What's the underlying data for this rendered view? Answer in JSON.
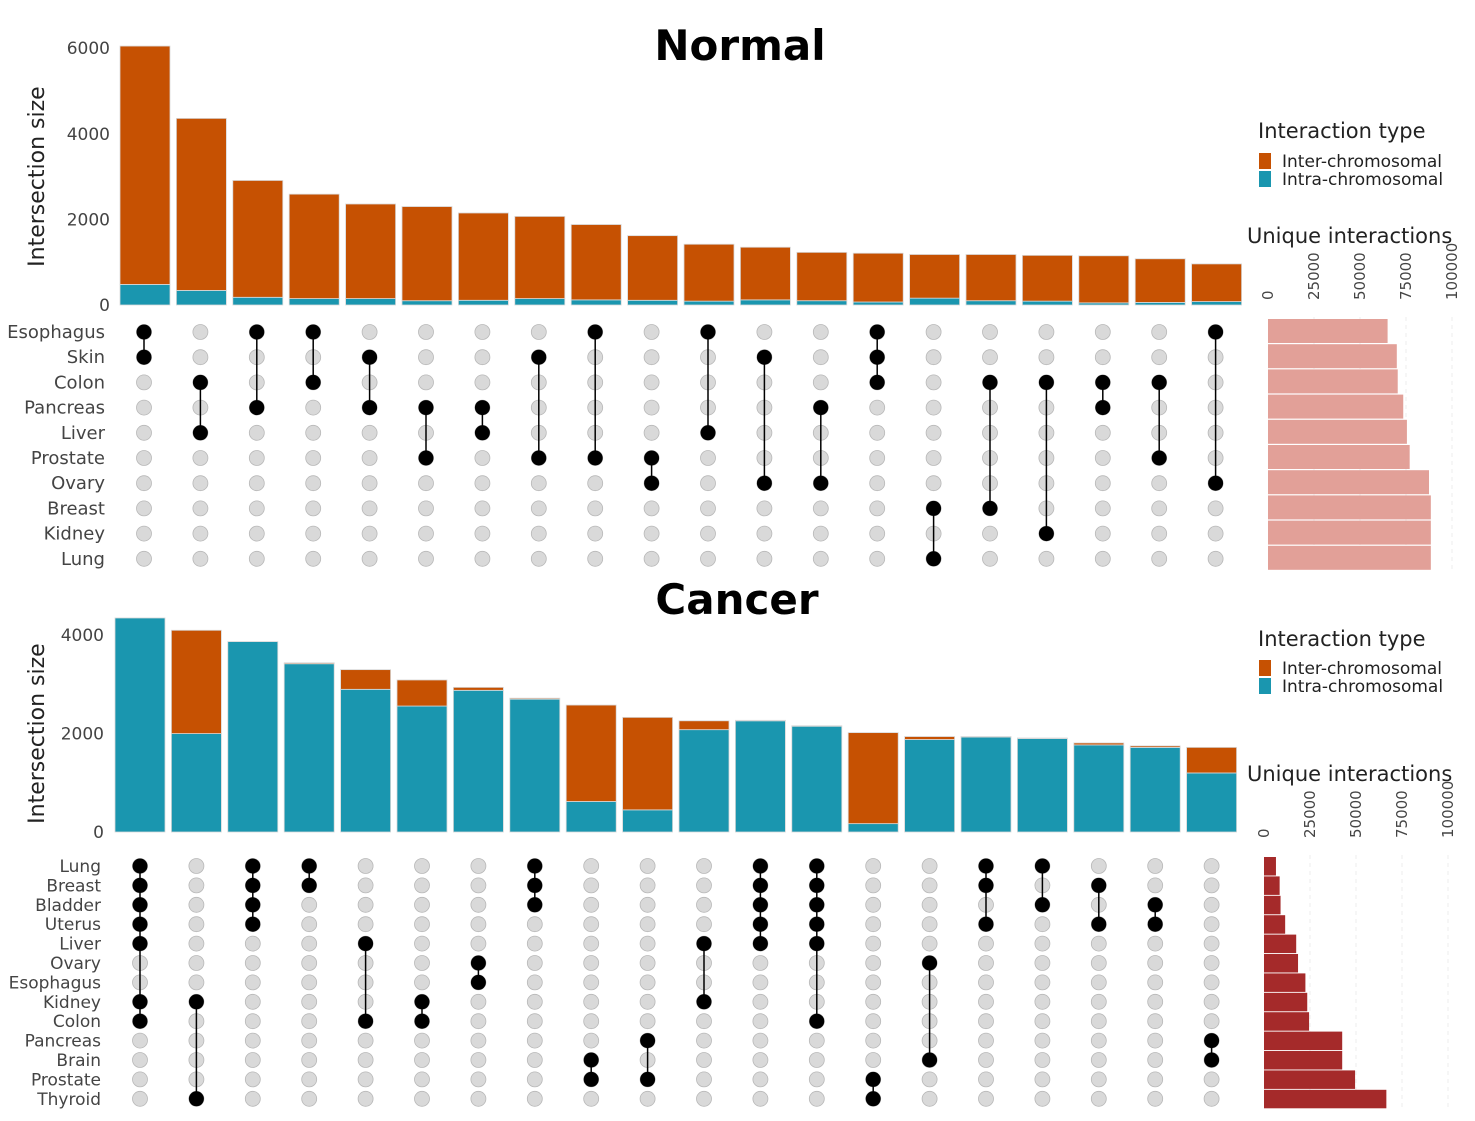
{
  "chart_data": [
    {
      "type": "bar",
      "title": "Normal",
      "ylabel": "Intersection size",
      "ylim": [
        0,
        6000
      ],
      "yticks": [
        0,
        2000,
        4000,
        6000
      ],
      "sets": [
        "Esophagus",
        "Skin",
        "Colon",
        "Pancreas",
        "Liver",
        "Prostate",
        "Ovary",
        "Breast",
        "Kidney",
        "Lung"
      ],
      "series": [
        {
          "name": "Inter-chromosomal",
          "color": "#C65102",
          "values": [
            5570,
            4020,
            2730,
            2440,
            2210,
            2200,
            2040,
            1920,
            1760,
            1510,
            1330,
            1230,
            1130,
            1140,
            1020,
            1080,
            1070,
            1100,
            1020,
            880
          ]
        },
        {
          "name": "Intra-chromosomal",
          "color": "#1A96AF",
          "values": [
            480,
            340,
            180,
            150,
            150,
            100,
            110,
            150,
            120,
            110,
            90,
            120,
            100,
            70,
            160,
            100,
            90,
            50,
            60,
            80
          ]
        }
      ],
      "intersections": [
        [
          "Esophagus",
          "Skin"
        ],
        [
          "Colon",
          "Liver"
        ],
        [
          "Esophagus",
          "Pancreas"
        ],
        [
          "Esophagus",
          "Colon"
        ],
        [
          "Skin",
          "Pancreas"
        ],
        [
          "Pancreas",
          "Prostate"
        ],
        [
          "Pancreas",
          "Liver"
        ],
        [
          "Skin",
          "Prostate"
        ],
        [
          "Esophagus",
          "Prostate"
        ],
        [
          "Prostate",
          "Ovary"
        ],
        [
          "Esophagus",
          "Liver"
        ],
        [
          "Skin",
          "Ovary"
        ],
        [
          "Pancreas",
          "Ovary"
        ],
        [
          "Esophagus",
          "Skin",
          "Colon"
        ],
        [
          "Breast",
          "Lung"
        ],
        [
          "Colon",
          "Breast"
        ],
        [
          "Colon",
          "Kidney"
        ],
        [
          "Colon",
          "Pancreas"
        ],
        [
          "Colon",
          "Prostate"
        ],
        [
          "Esophagus",
          "Ovary"
        ]
      ],
      "legend": {
        "title": "Interaction type",
        "position": "right",
        "items": [
          {
            "label": "Inter-chromosomal",
            "color": "#C65102"
          },
          {
            "label": "Intra-chromosomal",
            "color": "#1A96AF"
          }
        ]
      },
      "unique": {
        "title": "Unique interactions",
        "ticks": [
          "0",
          "25000",
          "50000",
          "75000",
          "100000"
        ],
        "xlim": [
          0,
          100000
        ],
        "color": "#E2A098",
        "values": [
          65000,
          70000,
          70500,
          73500,
          75500,
          77000,
          87500,
          88500,
          88500,
          88500
        ]
      }
    },
    {
      "type": "bar",
      "title": "Cancer",
      "ylabel": "Intersection size",
      "ylim": [
        0,
        4000
      ],
      "yticks": [
        0,
        2000,
        4000
      ],
      "sets": [
        "Lung",
        "Breast",
        "Bladder",
        "Uterus",
        "Liver",
        "Ovary",
        "Esophagus",
        "Kidney",
        "Colon",
        "Pancreas",
        "Brain",
        "Prostate",
        "Thyroid"
      ],
      "series": [
        {
          "name": "Inter-chromosomal",
          "color": "#C65102",
          "values": [
            0,
            2100,
            0,
            20,
            400,
            530,
            60,
            20,
            1960,
            1880,
            180,
            10,
            10,
            1850,
            60,
            10,
            10,
            40,
            30,
            520
          ]
        },
        {
          "name": "Intra-chromosomal",
          "color": "#1A96AF",
          "values": [
            4350,
            2000,
            3870,
            3420,
            2900,
            2560,
            2880,
            2700,
            620,
            450,
            2080,
            2260,
            2150,
            170,
            1880,
            1930,
            1900,
            1770,
            1720,
            1200
          ]
        }
      ],
      "intersections": [
        [
          "Lung",
          "Breast",
          "Bladder",
          "Uterus",
          "Liver",
          "Kidney",
          "Colon"
        ],
        [
          "Kidney",
          "Thyroid"
        ],
        [
          "Lung",
          "Breast",
          "Bladder",
          "Uterus"
        ],
        [
          "Lung",
          "Breast"
        ],
        [
          "Liver",
          "Colon"
        ],
        [
          "Kidney",
          "Colon"
        ],
        [
          "Ovary",
          "Esophagus"
        ],
        [
          "Lung",
          "Breast",
          "Bladder"
        ],
        [
          "Brain",
          "Prostate"
        ],
        [
          "Pancreas",
          "Prostate"
        ],
        [
          "Liver",
          "Kidney"
        ],
        [
          "Lung",
          "Breast",
          "Bladder",
          "Uterus",
          "Liver"
        ],
        [
          "Lung",
          "Breast",
          "Bladder",
          "Uterus",
          "Liver",
          "Colon"
        ],
        [
          "Prostate",
          "Thyroid"
        ],
        [
          "Ovary",
          "Brain"
        ],
        [
          "Lung",
          "Breast",
          "Uterus"
        ],
        [
          "Lung",
          "Bladder"
        ],
        [
          "Breast",
          "Uterus"
        ],
        [
          "Bladder",
          "Uterus"
        ],
        [
          "Pancreas",
          "Brain"
        ]
      ],
      "legend": {
        "title": "Interaction type",
        "position": "right",
        "items": [
          {
            "label": "Inter-chromosomal",
            "color": "#C65102"
          },
          {
            "label": "Intra-chromosomal",
            "color": "#1A96AF"
          }
        ]
      },
      "unique": {
        "title": "Unique interactions",
        "ticks": [
          "0",
          "25000",
          "50000",
          "75000",
          "100000"
        ],
        "xlim": [
          0,
          100000
        ],
        "color": "#A52A2A",
        "values": [
          6500,
          8500,
          9000,
          11500,
          17500,
          18500,
          22500,
          23500,
          24500,
          42500,
          42500,
          49500,
          66500
        ]
      }
    }
  ]
}
